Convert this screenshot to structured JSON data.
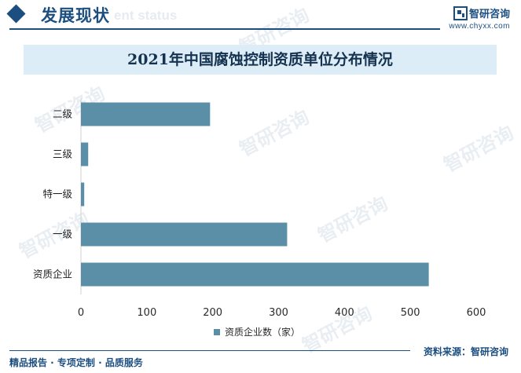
{
  "header": {
    "title": "发展现状",
    "ghost_text": "ent status",
    "brand_name": "智研咨询",
    "brand_site": "www.chyxx.com"
  },
  "watermark": "智研咨询",
  "colors": {
    "accent": "#1c4e80",
    "bar": "#5b8fa8",
    "title_band": "#dcedf7"
  },
  "chart_data": {
    "type": "bar",
    "orientation": "horizontal",
    "title": "2021年中国腐蚀控制资质单位分布情况",
    "categories": [
      "二级",
      "三级",
      "特一级",
      "一级",
      "资质企业"
    ],
    "series": [
      {
        "name": "资质企业数（家）",
        "values": [
          196,
          11,
          5,
          313,
          528
        ]
      }
    ],
    "xlim": [
      0,
      600
    ],
    "xticks": [
      "0",
      "100",
      "200",
      "300",
      "400",
      "500",
      "600"
    ],
    "grid": false,
    "legend_position": "bottom"
  },
  "footer": {
    "left": "精品报告 · 专项定制 · 品质服务",
    "right": "资料来源：智研咨询"
  }
}
